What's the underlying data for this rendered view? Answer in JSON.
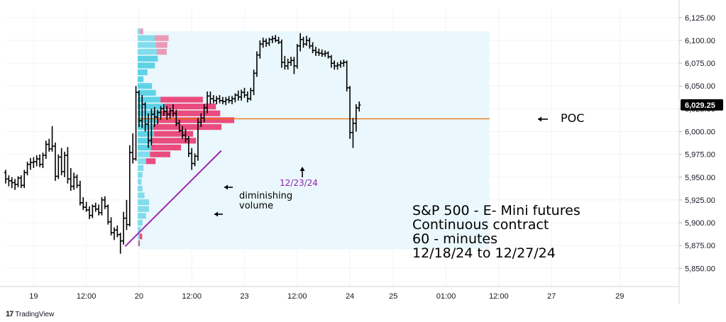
{
  "watermark": "TradingView",
  "chart_data": {
    "type": "ohlc",
    "title": "S&P 500 - E- Mini futures",
    "subtitle_lines": [
      "Continuous contract",
      "60 - minutes",
      "12/18/24 to 12/27/24"
    ],
    "xlabel": "",
    "ylabel": "",
    "ylim": [
      5830,
      6135
    ],
    "y_ticks": [
      5850,
      5875,
      5900,
      5925,
      5950,
      5975,
      6000,
      6025,
      6050,
      6075,
      6100,
      6125
    ],
    "y_tick_labels": [
      "5,850.00",
      "5,875.00",
      "5,900.00",
      "5,925.00",
      "5,950.00",
      "5,975.00",
      "6,000.00",
      "6,025.00",
      "6,050.00",
      "6,075.00",
      "6,100.00",
      "6,125.00"
    ],
    "x_ticks": [
      {
        "label": "19",
        "bar": 9
      },
      {
        "label": "12:00",
        "bar": 26
      },
      {
        "label": "20",
        "bar": 43
      },
      {
        "label": "12:00",
        "bar": 60
      },
      {
        "label": "23",
        "bar": 77
      },
      {
        "label": "12:00",
        "bar": 94
      },
      {
        "label": "24",
        "bar": 111
      },
      {
        "label": "25",
        "bar": 125
      },
      {
        "label": "01:00",
        "bar": 142
      },
      {
        "label": "12:00",
        "bar": 159
      },
      {
        "label": "27",
        "bar": 176
      },
      {
        "label": "29",
        "bar": 198
      }
    ],
    "last_price_label": "6,029.25",
    "last_price": 6029.25,
    "poc": {
      "label": "POC",
      "price": 6014
    },
    "annotations": [
      {
        "text": "12/23/24",
        "color": "#8e24aa"
      },
      {
        "text_lines": [
          "diminishing",
          "volume"
        ],
        "color": "#000000"
      }
    ],
    "volume_profile": {
      "levels": [
        6110,
        6102.5,
        6095,
        6087.5,
        6080,
        6072.5,
        6065,
        6057.5,
        6050,
        6042.5,
        6035,
        6027.5,
        6020,
        6012.5,
        6005,
        5997.5,
        5990,
        5982.5,
        5975,
        5967.5,
        5960,
        5952.5,
        5945,
        5937.5,
        5930,
        5922.5,
        5915,
        5907.5,
        5900,
        5892.5,
        5885,
        5877.5
      ],
      "up_volume": [
        0.8,
        5.3,
        5.6,
        5.9,
        6.2,
        5.3,
        3.0,
        1.8,
        4.4,
        5.6,
        7.0,
        8.4,
        7.3,
        6.2,
        4.7,
        5.0,
        4.4,
        4.1,
        3.8,
        2.6,
        1.8,
        1.5,
        1.2,
        1.5,
        2.1,
        3.5,
        3.5,
        2.6,
        1.5,
        0.9,
        0.6,
        0.3
      ],
      "down_volume": [
        0.9,
        4.2,
        3.5,
        3.0,
        0,
        0,
        0,
        0,
        0,
        0,
        13.0,
        15.6,
        18.0,
        23.4,
        21.0,
        12.0,
        13.5,
        9.2,
        6.2,
        2.9,
        0,
        0,
        0,
        0,
        0,
        0,
        0,
        0,
        0,
        0,
        0.8,
        0.4
      ],
      "value_area_from_bar": 43,
      "value_area_to_bar": 156,
      "value_area_high": 6110,
      "value_area_low": 5871
    },
    "colors": {
      "up_volume": "#5fd3e6",
      "down_volume": "#ea4c7e",
      "value_area": "#eaf7fc",
      "poc_line": "#ef6c00",
      "trendline": "#9c27b0",
      "bars": "#000000"
    },
    "ohlc": [
      [
        5955,
        5958,
        5943,
        5948
      ],
      [
        5948,
        5952,
        5940,
        5946
      ],
      [
        5946,
        5950,
        5938,
        5944
      ],
      [
        5944,
        5948,
        5936,
        5942
      ],
      [
        5942,
        5951,
        5939,
        5949
      ],
      [
        5949,
        5952,
        5938,
        5941
      ],
      [
        5941,
        5958,
        5938,
        5955
      ],
      [
        5955,
        5967,
        5952,
        5964
      ],
      [
        5964,
        5971,
        5958,
        5966
      ],
      [
        5966,
        5972,
        5960,
        5967
      ],
      [
        5967,
        5974,
        5962,
        5970
      ],
      [
        5970,
        5975,
        5961,
        5964
      ],
      [
        5964,
        5977,
        5960,
        5974
      ],
      [
        5974,
        5990,
        5970,
        5986
      ],
      [
        5986,
        5992,
        5978,
        5981
      ],
      [
        5981,
        6006,
        5978,
        5984
      ],
      [
        5984,
        5988,
        5946,
        5951
      ],
      [
        5951,
        5975,
        5948,
        5972
      ],
      [
        5972,
        5982,
        5952,
        5956
      ],
      [
        5956,
        5978,
        5950,
        5974
      ],
      [
        5974,
        5983,
        5943,
        5948
      ],
      [
        5948,
        5960,
        5935,
        5940
      ],
      [
        5940,
        5955,
        5936,
        5950
      ],
      [
        5950,
        5953,
        5938,
        5941
      ],
      [
        5941,
        5946,
        5919,
        5922
      ],
      [
        5922,
        5928,
        5914,
        5917
      ],
      [
        5917,
        5923,
        5912,
        5914
      ],
      [
        5914,
        5918,
        5904,
        5908
      ],
      [
        5908,
        5920,
        5905,
        5918
      ],
      [
        5918,
        5922,
        5912,
        5915
      ],
      [
        5915,
        5920,
        5908,
        5911
      ],
      [
        5911,
        5928,
        5908,
        5925
      ],
      [
        5925,
        5929,
        5915,
        5918
      ],
      [
        5918,
        5920,
        5898,
        5901
      ],
      [
        5901,
        5906,
        5886,
        5889
      ],
      [
        5889,
        5895,
        5881,
        5892
      ],
      [
        5892,
        5897,
        5884,
        5887
      ],
      [
        5887,
        5889,
        5866,
        5880
      ],
      [
        5880,
        5912,
        5876,
        5905
      ],
      [
        5905,
        5925,
        5892,
        5898
      ],
      [
        5898,
        5985,
        5896,
        5977
      ],
      [
        5977,
        5998,
        5965,
        5970
      ],
      [
        5970,
        6050,
        5968,
        6043
      ],
      [
        6043,
        6045,
        6005,
        6012
      ],
      [
        6012,
        6040,
        6004,
        6030
      ],
      [
        6030,
        6032,
        6000,
        6008
      ],
      [
        6008,
        6020,
        5982,
        5990
      ],
      [
        5990,
        6025,
        5985,
        6019
      ],
      [
        6019,
        6027,
        6005,
        6016
      ],
      [
        6016,
        6024,
        6008,
        6021
      ],
      [
        6021,
        6028,
        6013,
        6025
      ],
      [
        6025,
        6030,
        6017,
        6022
      ],
      [
        6022,
        6028,
        6013,
        6019
      ],
      [
        6019,
        6026,
        6014,
        6023
      ],
      [
        6023,
        6030,
        6016,
        6020
      ],
      [
        6020,
        6024,
        6006,
        6009
      ],
      [
        6009,
        6013,
        5999,
        6001
      ],
      [
        6001,
        6006,
        5992,
        5996
      ],
      [
        5996,
        6003,
        5988,
        5992
      ],
      [
        5992,
        5995,
        5972,
        5976
      ],
      [
        5976,
        5982,
        5958,
        5965
      ],
      [
        5965,
        5976,
        5962,
        5973
      ],
      [
        5973,
        6015,
        5968,
        6010
      ],
      [
        6010,
        6020,
        6005,
        6015
      ],
      [
        6015,
        6030,
        6010,
        6026
      ],
      [
        6026,
        6044,
        6020,
        6039
      ],
      [
        6039,
        6044,
        6030,
        6036
      ],
      [
        6036,
        6040,
        6031,
        6034
      ],
      [
        6034,
        6039,
        6030,
        6036
      ],
      [
        6036,
        6040,
        6031,
        6034
      ],
      [
        6034,
        6038,
        6030,
        6033
      ],
      [
        6033,
        6038,
        6029,
        6035
      ],
      [
        6035,
        6039,
        6031,
        6034
      ],
      [
        6034,
        6039,
        6030,
        6036
      ],
      [
        6036,
        6042,
        6032,
        6040
      ],
      [
        6040,
        6045,
        6034,
        6038
      ],
      [
        6038,
        6046,
        6034,
        6043
      ],
      [
        6043,
        6048,
        6037,
        6040
      ],
      [
        6040,
        6044,
        6032,
        6036
      ],
      [
        6036,
        6048,
        6034,
        6045
      ],
      [
        6045,
        6068,
        6040,
        6064
      ],
      [
        6064,
        6088,
        6060,
        6084
      ],
      [
        6084,
        6100,
        6080,
        6096
      ],
      [
        6096,
        6103,
        6092,
        6099
      ],
      [
        6099,
        6102,
        6093,
        6097
      ],
      [
        6097,
        6103,
        6094,
        6101
      ],
      [
        6101,
        6105,
        6097,
        6102
      ],
      [
        6102,
        6106,
        6098,
        6100
      ],
      [
        6100,
        6104,
        6096,
        6098
      ],
      [
        6098,
        6101,
        6070,
        6076
      ],
      [
        6076,
        6083,
        6068,
        6072
      ],
      [
        6072,
        6080,
        6068,
        6076
      ],
      [
        6076,
        6082,
        6072,
        6078
      ],
      [
        6078,
        6082,
        6063,
        6072
      ],
      [
        6072,
        6096,
        6069,
        6094
      ],
      [
        6094,
        6108,
        6088,
        6101
      ],
      [
        6101,
        6104,
        6092,
        6096
      ],
      [
        6096,
        6105,
        6094,
        6100
      ],
      [
        6100,
        6103,
        6091,
        6094
      ],
      [
        6094,
        6098,
        6086,
        6089
      ],
      [
        6089,
        6093,
        6083,
        6087
      ],
      [
        6087,
        6091,
        6083,
        6086
      ],
      [
        6086,
        6090,
        6082,
        6085
      ],
      [
        6085,
        6089,
        6082,
        6086
      ],
      [
        6086,
        6088,
        6080,
        6082
      ],
      [
        6082,
        6084,
        6070,
        6075
      ],
      [
        6075,
        6078,
        6068,
        6072
      ],
      [
        6072,
        6076,
        6068,
        6073
      ],
      [
        6073,
        6078,
        6070,
        6075
      ],
      [
        6075,
        6079,
        6071,
        6076
      ],
      [
        6076,
        6078,
        6044,
        6048
      ],
      [
        6048,
        6050,
        5992,
        5999
      ],
      [
        5999,
        6015,
        5982,
        6009
      ],
      [
        6009,
        6030,
        6000,
        6026
      ],
      [
        6026,
        6033,
        6022,
        6029
      ]
    ]
  }
}
